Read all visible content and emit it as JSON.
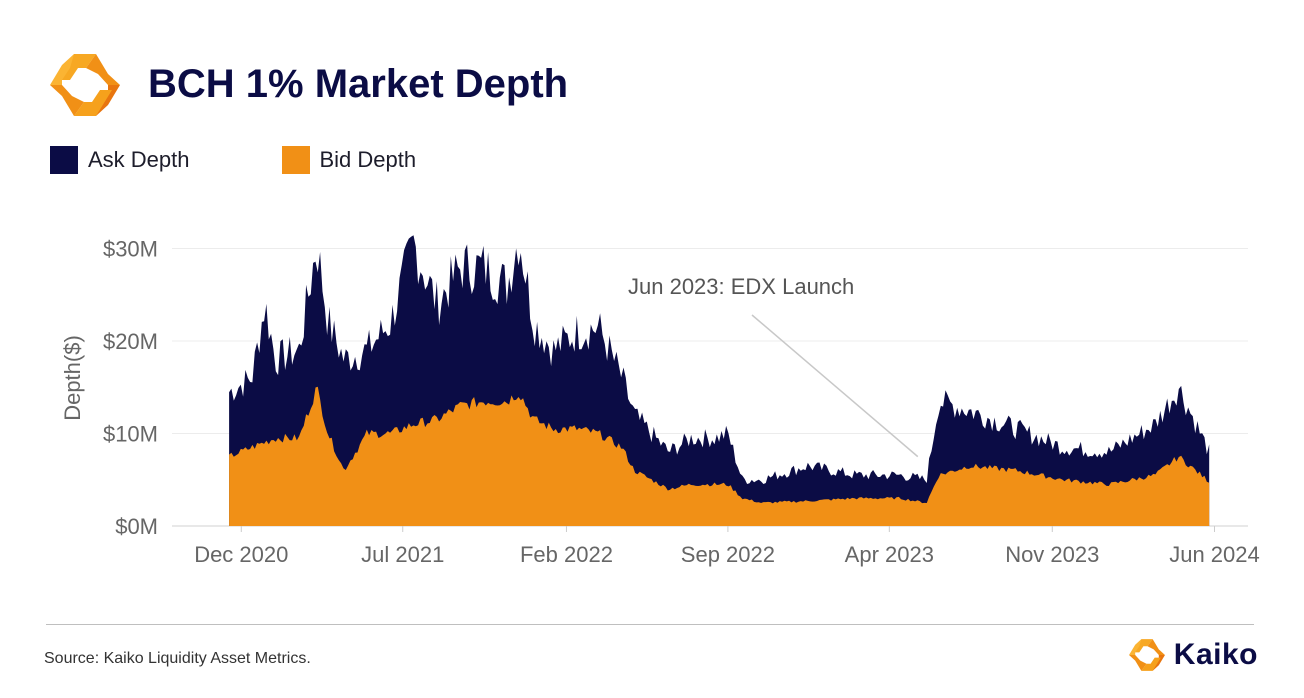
{
  "title": "BCH 1% Market Depth",
  "legend": [
    {
      "label": "Ask Depth",
      "color": "#0b0c45"
    },
    {
      "label": "Bid Depth",
      "color": "#f19016"
    }
  ],
  "source": "Source: Kaiko Liquidity Asset Metrics.",
  "brand": {
    "name": "Kaiko",
    "logo_icon": "kaiko-logo-icon",
    "accent": "#f19016",
    "navy": "#0b0c45"
  },
  "chart_data": {
    "type": "area",
    "ylabel": "Depth($)",
    "yticks": [
      "$0M",
      "$10M",
      "$20M",
      "$30M"
    ],
    "ytick_values": [
      0,
      10,
      20,
      30
    ],
    "ylim": [
      0,
      32
    ],
    "xticks": [
      "Dec 2020",
      "Jul 2021",
      "Feb 2022",
      "Sep 2022",
      "Apr 2023",
      "Nov 2023",
      "Jun 2024"
    ],
    "xtick_dates": [
      "2020-12-01",
      "2021-07-01",
      "2022-02-01",
      "2022-09-01",
      "2023-04-01",
      "2023-11-01",
      "2024-06-01"
    ],
    "grid": "horizontal",
    "stacked": true,
    "annotation": {
      "text": "Jun 2023: EDX Launch",
      "date": "2023-06-01"
    },
    "series": [
      {
        "name": "Bid Depth",
        "color": "#f19016",
        "points": [
          [
            "2020-11-15",
            7.5
          ],
          [
            "2020-12-15",
            8.5
          ],
          [
            "2021-01-15",
            9.5
          ],
          [
            "2021-02-15",
            9.5
          ],
          [
            "2021-03-10",
            15.0
          ],
          [
            "2021-03-25",
            10.0
          ],
          [
            "2021-04-15",
            6.0
          ],
          [
            "2021-05-15",
            10.0
          ],
          [
            "2021-06-15",
            10.0
          ],
          [
            "2021-07-15",
            11.0
          ],
          [
            "2021-08-15",
            11.5
          ],
          [
            "2021-09-15",
            13.0
          ],
          [
            "2021-10-15",
            13.5
          ],
          [
            "2021-11-15",
            13.5
          ],
          [
            "2021-12-01",
            14.5
          ],
          [
            "2021-12-20",
            11.5
          ],
          [
            "2022-01-15",
            10.5
          ],
          [
            "2022-02-15",
            10.5
          ],
          [
            "2022-03-15",
            10.0
          ],
          [
            "2022-04-15",
            8.5
          ],
          [
            "2022-05-01",
            6.0
          ],
          [
            "2022-06-15",
            4.0
          ],
          [
            "2022-07-15",
            4.5
          ],
          [
            "2022-08-15",
            4.5
          ],
          [
            "2022-09-01",
            4.5
          ],
          [
            "2022-09-20",
            3.0
          ],
          [
            "2022-10-15",
            2.5
          ],
          [
            "2022-12-15",
            2.7
          ],
          [
            "2023-02-15",
            3.0
          ],
          [
            "2023-04-15",
            3.0
          ],
          [
            "2023-05-20",
            2.5
          ],
          [
            "2023-06-05",
            5.5
          ],
          [
            "2023-07-15",
            6.5
          ],
          [
            "2023-09-15",
            6.0
          ],
          [
            "2023-11-15",
            5.0
          ],
          [
            "2024-01-15",
            4.5
          ],
          [
            "2024-03-15",
            5.5
          ],
          [
            "2024-04-15",
            7.5
          ],
          [
            "2024-05-25",
            4.8
          ]
        ]
      },
      {
        "name": "Ask Depth",
        "color": "#0b0c45",
        "points": [
          [
            "2020-11-15",
            14.5
          ],
          [
            "2020-12-15",
            16.0
          ],
          [
            "2021-01-01",
            24.0
          ],
          [
            "2021-01-15",
            18.0
          ],
          [
            "2021-02-15",
            19.0
          ],
          [
            "2021-03-10",
            30.5
          ],
          [
            "2021-03-25",
            22.0
          ],
          [
            "2021-04-15",
            18.0
          ],
          [
            "2021-05-15",
            19.0
          ],
          [
            "2021-06-15",
            22.0
          ],
          [
            "2021-07-15",
            30.5
          ],
          [
            "2021-08-15",
            24.0
          ],
          [
            "2021-09-15",
            28.0
          ],
          [
            "2021-10-15",
            28.0
          ],
          [
            "2021-11-15",
            26.0
          ],
          [
            "2021-12-01",
            31.5
          ],
          [
            "2021-12-20",
            22.0
          ],
          [
            "2022-01-15",
            19.0
          ],
          [
            "2022-02-15",
            21.0
          ],
          [
            "2022-03-15",
            21.5
          ],
          [
            "2022-04-15",
            16.0
          ],
          [
            "2022-05-01",
            12.0
          ],
          [
            "2022-06-15",
            8.0
          ],
          [
            "2022-07-15",
            9.5
          ],
          [
            "2022-08-15",
            9.5
          ],
          [
            "2022-09-01",
            10.0
          ],
          [
            "2022-09-20",
            5.0
          ],
          [
            "2022-10-15",
            5.0
          ],
          [
            "2022-12-15",
            6.5
          ],
          [
            "2023-02-15",
            5.5
          ],
          [
            "2023-04-15",
            5.5
          ],
          [
            "2023-05-20",
            5.0
          ],
          [
            "2023-06-05",
            13.5
          ],
          [
            "2023-07-15",
            12.5
          ],
          [
            "2023-09-15",
            10.5
          ],
          [
            "2023-11-15",
            8.5
          ],
          [
            "2024-01-15",
            8.0
          ],
          [
            "2024-03-15",
            11.0
          ],
          [
            "2024-04-15",
            15.0
          ],
          [
            "2024-05-25",
            8.0
          ]
        ]
      }
    ]
  }
}
